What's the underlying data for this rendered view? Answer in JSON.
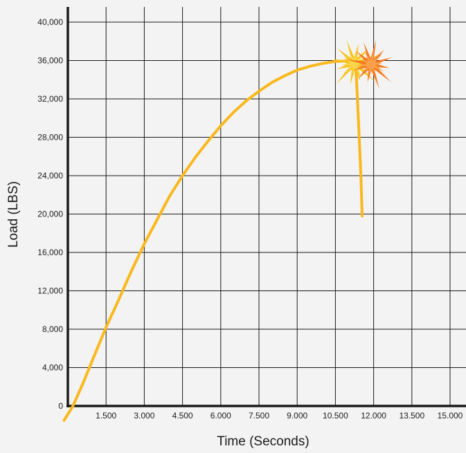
{
  "chart_data": {
    "type": "line",
    "title": "",
    "xlabel": "Time (Seconds)",
    "ylabel": "Load (LBS)",
    "xlim": [
      0,
      15.0
    ],
    "ylim": [
      0,
      40000
    ],
    "x_ticks": [
      1.5,
      3.0,
      4.5,
      6.0,
      7.5,
      9.0,
      10.5,
      12.0,
      13.5,
      15.0
    ],
    "x_tick_labels": [
      "1.500",
      "3.000",
      "4.500",
      "6.000",
      "7.500",
      "9.000",
      "10.500",
      "12.000",
      "13.500",
      "15.000"
    ],
    "y_ticks": [
      0,
      4000,
      8000,
      12000,
      16000,
      20000,
      24000,
      28000,
      32000,
      36000,
      40000
    ],
    "y_tick_labels": [
      "0",
      "4,000",
      "8,000",
      "12,000",
      "16,000",
      "20,000",
      "24,000",
      "28,000",
      "32,000",
      "36,000",
      "40,000"
    ],
    "grid": true,
    "series": [
      {
        "color": "#f9b81c",
        "x": [
          -0.15,
          0.2,
          0.6,
          1.0,
          1.5,
          2.0,
          2.5,
          3.0,
          3.5,
          4.0,
          4.5,
          5.0,
          5.5,
          6.0,
          6.5,
          7.0,
          7.5,
          8.0,
          8.5,
          9.0,
          9.5,
          10.0,
          10.5,
          10.9,
          11.2,
          11.3,
          11.4,
          11.5,
          11.55
        ],
        "y": [
          -1500,
          0,
          2400,
          5000,
          8200,
          11100,
          14100,
          16900,
          19400,
          21900,
          24000,
          25900,
          27600,
          29200,
          30600,
          31800,
          32800,
          33700,
          34400,
          35000,
          35400,
          35700,
          35900,
          35950,
          35900,
          35500,
          30000,
          24000,
          19800
        ]
      }
    ],
    "annotations": [
      {
        "type": "burst",
        "x": 11.25,
        "y": 35700,
        "colors": [
          "#f9c21a",
          "#fbd54a"
        ]
      },
      {
        "type": "burst",
        "x": 11.9,
        "y": 35600,
        "colors": [
          "#f47b20",
          "#fba04a"
        ]
      }
    ],
    "colors": {
      "background": "#f3f3f3",
      "axis": "#1a1a1a",
      "grid": "#1a1a1a",
      "line": "#f9b81c"
    }
  }
}
